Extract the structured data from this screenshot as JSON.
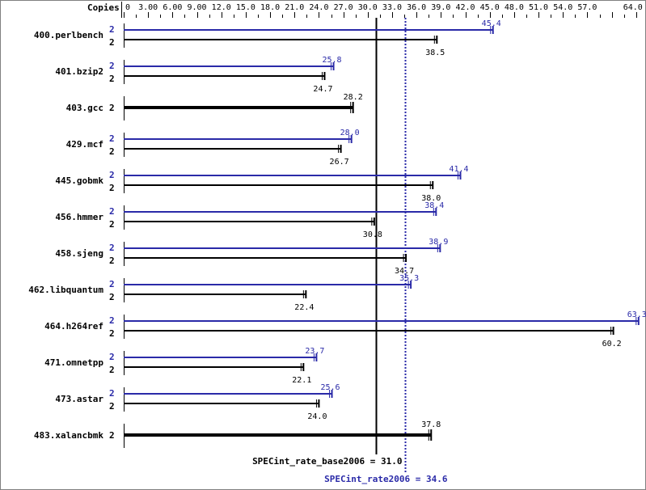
{
  "chart_data": {
    "type": "bar",
    "orientation": "horizontal",
    "axis_label": "Copies",
    "xlim": [
      0,
      64
    ],
    "tick_labels": [
      "0",
      "3.00",
      "6.00",
      "9.00",
      "12.0",
      "15.0",
      "18.0",
      "21.0",
      "24.0",
      "27.0",
      "30.0",
      "33.0",
      "36.0",
      "39.0",
      "42.0",
      "45.0",
      "48.0",
      "51.0",
      "54.0",
      "57.0",
      "64.0"
    ],
    "tick_values": [
      0,
      3,
      6,
      9,
      12,
      15,
      18,
      21,
      24,
      27,
      30,
      33,
      36,
      39,
      42,
      45,
      48,
      51,
      54,
      57,
      64
    ],
    "colors": {
      "peak": "#2a2aa8",
      "base": "#000000"
    },
    "benchmarks": [
      {
        "name": "400.perlbench",
        "peak_copies": "2",
        "peak": 45.4,
        "base_copies": "2",
        "base": 38.5
      },
      {
        "name": "401.bzip2",
        "peak_copies": "2",
        "peak": 25.8,
        "base_copies": "2",
        "base": 24.7
      },
      {
        "name": "403.gcc",
        "base_copies": "2",
        "base": 28.2
      },
      {
        "name": "429.mcf",
        "peak_copies": "2",
        "peak": 28.0,
        "base_copies": "2",
        "base": 26.7
      },
      {
        "name": "445.gobmk",
        "peak_copies": "2",
        "peak": 41.4,
        "base_copies": "2",
        "base": 38.0
      },
      {
        "name": "456.hmmer",
        "peak_copies": "2",
        "peak": 38.4,
        "base_copies": "2",
        "base": 30.8
      },
      {
        "name": "458.sjeng",
        "peak_copies": "2",
        "peak": 38.9,
        "base_copies": "2",
        "base": 34.7
      },
      {
        "name": "462.libquantum",
        "peak_copies": "2",
        "peak": 35.3,
        "base_copies": "2",
        "base": 22.4
      },
      {
        "name": "464.h264ref",
        "peak_copies": "2",
        "peak": 63.3,
        "base_copies": "2",
        "base": 60.2
      },
      {
        "name": "471.omnetpp",
        "peak_copies": "2",
        "peak": 23.7,
        "base_copies": "2",
        "base": 22.1
      },
      {
        "name": "473.astar",
        "peak_copies": "2",
        "peak": 25.6,
        "base_copies": "2",
        "base": 24.0
      },
      {
        "name": "483.xalancbmk",
        "base_copies": "2",
        "base": 37.8
      }
    ],
    "base_summary": {
      "label": "SPECint_rate_base2006 = 31.0",
      "value": 31.0
    },
    "peak_summary": {
      "label": "SPECint_rate2006 = 34.6",
      "value": 34.6
    }
  }
}
